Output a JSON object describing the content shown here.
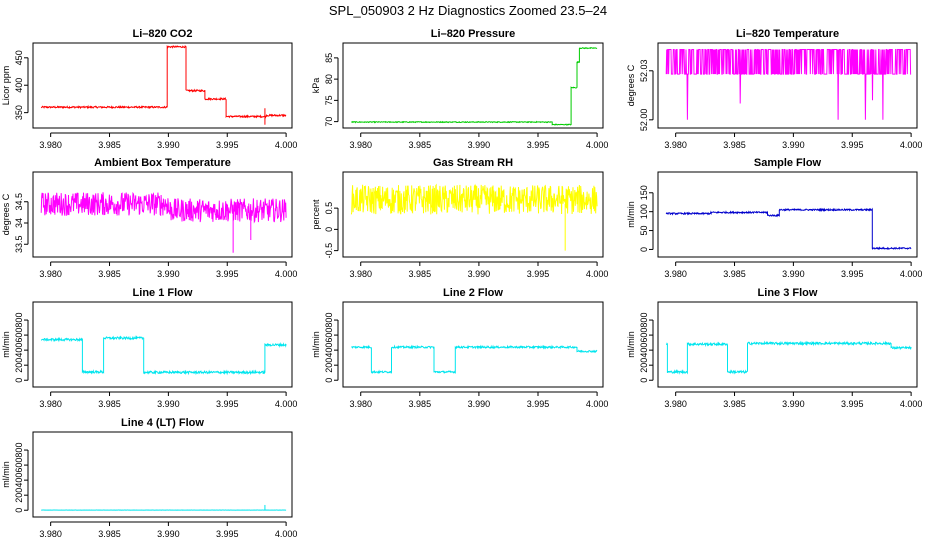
{
  "page_title": "SPL_050903  2 Hz Diagnostics Zoomed 23.5–24",
  "chart_data": [
    {
      "type": "line",
      "title": "Li–820 CO2",
      "ylabel": "Licor ppm",
      "color": "#ff0000",
      "xlim": [
        3.9785,
        4.0005
      ],
      "ylim": [
        322,
        477
      ],
      "yticks": [
        350,
        400,
        450
      ],
      "xticks": [
        3.98,
        3.985,
        3.99,
        3.995,
        4.0
      ],
      "x_tick_labels": [
        "3.980",
        "3.985",
        "3.990",
        "3.995",
        "4.000"
      ],
      "segments": [
        [
          3.9792,
          3.9899,
          360
        ],
        [
          3.9899,
          3.9915,
          470
        ],
        [
          3.9915,
          3.9931,
          390
        ],
        [
          3.9931,
          3.9949,
          375
        ],
        [
          3.9949,
          3.9983,
          343
        ],
        [
          3.9983,
          4.0,
          345
        ]
      ],
      "noise": 1.5,
      "spikes": [
        [
          3.9982,
          328,
          358
        ]
      ]
    },
    {
      "type": "line",
      "title": "Li–820 Pressure",
      "ylabel": "kPa",
      "color": "#00cc00",
      "xlim": [
        3.9785,
        4.0005
      ],
      "ylim": [
        68.5,
        88.5
      ],
      "yticks": [
        70,
        75,
        80,
        85
      ],
      "xticks": [
        3.98,
        3.985,
        3.99,
        3.995,
        4.0
      ],
      "x_tick_labels": [
        "3.980",
        "3.985",
        "3.990",
        "3.995",
        "4.000"
      ],
      "segments": [
        [
          3.9792,
          3.9962,
          69.9
        ],
        [
          3.9962,
          3.9978,
          69.3
        ],
        [
          3.9978,
          3.9983,
          78
        ],
        [
          3.9983,
          3.9985,
          84
        ],
        [
          3.9985,
          4.0,
          87.3
        ]
      ],
      "noise": 0.1,
      "spikes": []
    },
    {
      "type": "line",
      "title": "Li–820 Temperature",
      "ylabel": "degrees C",
      "color": "#ff00ff",
      "xlim": [
        3.9785,
        4.0005
      ],
      "ylim": [
        51.995,
        52.047
      ],
      "yticks": [
        52.0,
        52.03
      ],
      "y_tick_labels": [
        "52.00",
        "52.03"
      ],
      "xticks": [
        3.98,
        3.985,
        3.99,
        3.995,
        4.0
      ],
      "x_tick_labels": [
        "3.980",
        "3.985",
        "3.990",
        "3.995",
        "4.000"
      ],
      "binary_levels": [
        52.043,
        52.028
      ],
      "dips": [
        [
          3.981,
          52.0
        ],
        [
          3.9855,
          52.01
        ],
        [
          3.9938,
          52.0
        ],
        [
          3.9961,
          52.0
        ],
        [
          3.9967,
          52.012
        ],
        [
          3.9976,
          52.0
        ]
      ]
    },
    {
      "type": "line",
      "title": "Ambient Box Temperature",
      "ylabel": "degrees C",
      "color": "#ff00ff",
      "xlim": [
        3.9785,
        4.0005
      ],
      "ylim": [
        33.2,
        35.2
      ],
      "yticks": [
        33.5,
        34.0,
        34.5
      ],
      "xticks": [
        3.98,
        3.985,
        3.99,
        3.995,
        4.0
      ],
      "x_tick_labels": [
        "3.980",
        "3.985",
        "3.990",
        "3.995",
        "4.000"
      ],
      "segments": [
        [
          3.9792,
          3.99,
          34.45
        ],
        [
          3.99,
          4.0,
          34.3
        ]
      ],
      "noise": 0.28,
      "spikes": [
        [
          3.9955,
          34.2,
          33.3
        ],
        [
          3.997,
          34.2,
          33.6
        ]
      ]
    },
    {
      "type": "line",
      "title": "Gas Stream RH",
      "ylabel": "percent",
      "color": "#ffff00",
      "xlim": [
        3.9785,
        4.0005
      ],
      "ylim": [
        -0.65,
        1.35
      ],
      "yticks": [
        -0.5,
        0.0,
        0.5
      ],
      "xticks": [
        3.98,
        3.985,
        3.99,
        3.995,
        4.0
      ],
      "x_tick_labels": [
        "3.980",
        "3.985",
        "3.990",
        "3.995",
        "4.000"
      ],
      "segments": [
        [
          3.9792,
          4.0,
          0.7
        ]
      ],
      "noise": 0.35,
      "spikes": [
        [
          3.9973,
          0.6,
          -0.5
        ]
      ]
    },
    {
      "type": "line",
      "title": "Sample Flow",
      "ylabel": "ml/min",
      "color": "#0000cc",
      "xlim": [
        3.9785,
        4.0005
      ],
      "ylim": [
        -20,
        205
      ],
      "yticks": [
        0,
        50,
        100,
        150
      ],
      "xticks": [
        3.98,
        3.985,
        3.99,
        3.995,
        4.0
      ],
      "x_tick_labels": [
        "3.980",
        "3.985",
        "3.990",
        "3.995",
        "4.000"
      ],
      "segments": [
        [
          3.9792,
          3.983,
          95
        ],
        [
          3.983,
          3.9878,
          98
        ],
        [
          3.9878,
          3.9888,
          90
        ],
        [
          3.9888,
          3.9967,
          105
        ],
        [
          3.9967,
          4.0,
          3
        ]
      ],
      "noise": 2,
      "spikes": []
    },
    {
      "type": "line",
      "title": "Line 1 Flow",
      "ylabel": "ml/min",
      "color": "#00e5ee",
      "xlim": [
        3.9785,
        4.0005
      ],
      "ylim": [
        -90,
        1040
      ],
      "yticks": [
        0,
        200,
        400,
        600,
        800
      ],
      "xticks": [
        3.98,
        3.985,
        3.99,
        3.995,
        4.0
      ],
      "x_tick_labels": [
        "3.980",
        "3.985",
        "3.990",
        "3.995",
        "4.000"
      ],
      "segments": [
        [
          3.9792,
          3.9827,
          540
        ],
        [
          3.9827,
          3.9845,
          110
        ],
        [
          3.9845,
          3.9879,
          560
        ],
        [
          3.9879,
          3.9982,
          105
        ],
        [
          3.9982,
          4.0,
          470
        ]
      ],
      "noise": 15,
      "spikes": []
    },
    {
      "type": "line",
      "title": "Line 2 Flow",
      "ylabel": "ml/min",
      "color": "#00e5ee",
      "xlim": [
        3.9785,
        4.0005
      ],
      "ylim": [
        -90,
        1040
      ],
      "yticks": [
        0,
        200,
        400,
        600,
        800
      ],
      "xticks": [
        3.98,
        3.985,
        3.99,
        3.995,
        4.0
      ],
      "x_tick_labels": [
        "3.980",
        "3.985",
        "3.990",
        "3.995",
        "4.000"
      ],
      "segments": [
        [
          3.9792,
          3.9809,
          440
        ],
        [
          3.9809,
          3.9826,
          110
        ],
        [
          3.9826,
          3.9862,
          440
        ],
        [
          3.9862,
          3.988,
          110
        ],
        [
          3.988,
          3.9983,
          440
        ],
        [
          3.9983,
          4.0,
          385
        ]
      ],
      "noise": 12,
      "spikes": []
    },
    {
      "type": "line",
      "title": "Line 3 Flow",
      "ylabel": "ml/min",
      "color": "#00e5ee",
      "xlim": [
        3.9785,
        4.0005
      ],
      "ylim": [
        -90,
        1040
      ],
      "yticks": [
        0,
        200,
        400,
        600,
        800
      ],
      "xticks": [
        3.98,
        3.985,
        3.99,
        3.995,
        4.0
      ],
      "x_tick_labels": [
        "3.980",
        "3.985",
        "3.990",
        "3.995",
        "4.000"
      ],
      "segments": [
        [
          3.9792,
          3.9793,
          480
        ],
        [
          3.9793,
          3.981,
          110
        ],
        [
          3.981,
          3.9844,
          480
        ],
        [
          3.9844,
          3.9861,
          110
        ],
        [
          3.9861,
          3.9983,
          490
        ],
        [
          3.9983,
          4.0,
          430
        ]
      ],
      "noise": 15,
      "spikes": []
    },
    {
      "type": "line",
      "title": "Line 4 (LT) Flow",
      "ylabel": "ml/min",
      "color": "#00e5ee",
      "xlim": [
        3.9785,
        4.0005
      ],
      "ylim": [
        -90,
        1040
      ],
      "yticks": [
        0,
        200,
        400,
        600,
        800
      ],
      "xticks": [
        3.98,
        3.985,
        3.99,
        3.995,
        4.0
      ],
      "x_tick_labels": [
        "3.980",
        "3.985",
        "3.990",
        "3.995",
        "4.000"
      ],
      "segments": [
        [
          3.9792,
          4.0,
          2
        ]
      ],
      "noise": 1,
      "spikes": [
        [
          3.9982,
          2,
          70
        ]
      ]
    }
  ]
}
